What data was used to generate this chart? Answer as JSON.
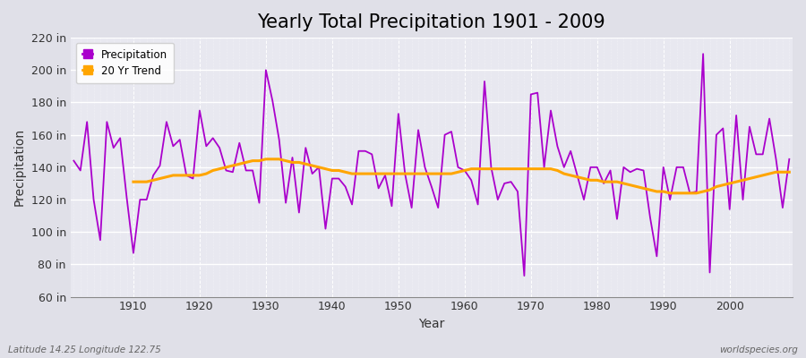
{
  "title": "Yearly Total Precipitation 1901 - 2009",
  "xlabel": "Year",
  "ylabel": "Precipitation",
  "years": [
    1901,
    1902,
    1903,
    1904,
    1905,
    1906,
    1907,
    1908,
    1909,
    1910,
    1911,
    1912,
    1913,
    1914,
    1915,
    1916,
    1917,
    1918,
    1919,
    1920,
    1921,
    1922,
    1923,
    1924,
    1925,
    1926,
    1927,
    1928,
    1929,
    1930,
    1931,
    1932,
    1933,
    1934,
    1935,
    1936,
    1937,
    1938,
    1939,
    1940,
    1941,
    1942,
    1943,
    1944,
    1945,
    1946,
    1947,
    1948,
    1949,
    1950,
    1951,
    1952,
    1953,
    1954,
    1955,
    1956,
    1957,
    1958,
    1959,
    1960,
    1961,
    1962,
    1963,
    1964,
    1965,
    1966,
    1967,
    1968,
    1969,
    1970,
    1971,
    1972,
    1973,
    1974,
    1975,
    1976,
    1977,
    1978,
    1979,
    1980,
    1981,
    1982,
    1983,
    1984,
    1985,
    1986,
    1987,
    1988,
    1989,
    1990,
    1991,
    1992,
    1993,
    1994,
    1995,
    1996,
    1997,
    1998,
    1999,
    2000,
    2001,
    2002,
    2003,
    2004,
    2005,
    2006,
    2007,
    2008,
    2009
  ],
  "precip": [
    144,
    138,
    168,
    120,
    95,
    168,
    152,
    158,
    121,
    87,
    120,
    120,
    135,
    141,
    168,
    153,
    157,
    135,
    133,
    175,
    153,
    158,
    152,
    138,
    137,
    155,
    138,
    138,
    118,
    200,
    181,
    157,
    118,
    146,
    112,
    152,
    136,
    140,
    102,
    133,
    133,
    128,
    117,
    150,
    150,
    148,
    127,
    135,
    116,
    173,
    136,
    115,
    163,
    140,
    128,
    115,
    160,
    162,
    140,
    138,
    132,
    117,
    193,
    140,
    120,
    130,
    131,
    125,
    73,
    185,
    186,
    140,
    175,
    153,
    140,
    150,
    135,
    120,
    140,
    140,
    130,
    138,
    108,
    140,
    137,
    139,
    138,
    109,
    85,
    140,
    120,
    140,
    140,
    124,
    125,
    210,
    75,
    160,
    164,
    114,
    172,
    120,
    165,
    148,
    148,
    170,
    145,
    115,
    145
  ],
  "trend": [
    null,
    null,
    null,
    null,
    null,
    null,
    null,
    null,
    null,
    131,
    131,
    131,
    132,
    133,
    134,
    135,
    135,
    135,
    135,
    135,
    136,
    138,
    139,
    140,
    141,
    142,
    143,
    144,
    144,
    145,
    145,
    145,
    144,
    143,
    143,
    142,
    141,
    140,
    139,
    138,
    138,
    137,
    136,
    136,
    136,
    136,
    136,
    136,
    136,
    136,
    136,
    136,
    136,
    136,
    136,
    136,
    136,
    136,
    137,
    138,
    139,
    139,
    139,
    139,
    139,
    139,
    139,
    139,
    139,
    139,
    139,
    139,
    139,
    138,
    136,
    135,
    134,
    133,
    132,
    132,
    131,
    131,
    131,
    130,
    129,
    128,
    127,
    126,
    125,
    125,
    124,
    124,
    124,
    124,
    124,
    125,
    126,
    128,
    129,
    130,
    131,
    132,
    133,
    134,
    135,
    136,
    137,
    137,
    137
  ],
  "precip_color": "#AA00CC",
  "trend_color": "#FFA500",
  "fig_bg_color": "#E0E0E8",
  "plot_bg_color": "#E8E8F0",
  "ylim": [
    60,
    220
  ],
  "yticks": [
    60,
    80,
    100,
    120,
    140,
    160,
    180,
    200,
    220
  ],
  "xticks": [
    1910,
    1920,
    1930,
    1940,
    1950,
    1960,
    1970,
    1980,
    1990,
    2000
  ],
  "title_fontsize": 15,
  "axis_label_fontsize": 10,
  "tick_fontsize": 9,
  "footer_left": "Latitude 14.25 Longitude 122.75",
  "footer_right": "worldspecies.org",
  "legend_labels": [
    "Precipitation",
    "20 Yr Trend"
  ]
}
